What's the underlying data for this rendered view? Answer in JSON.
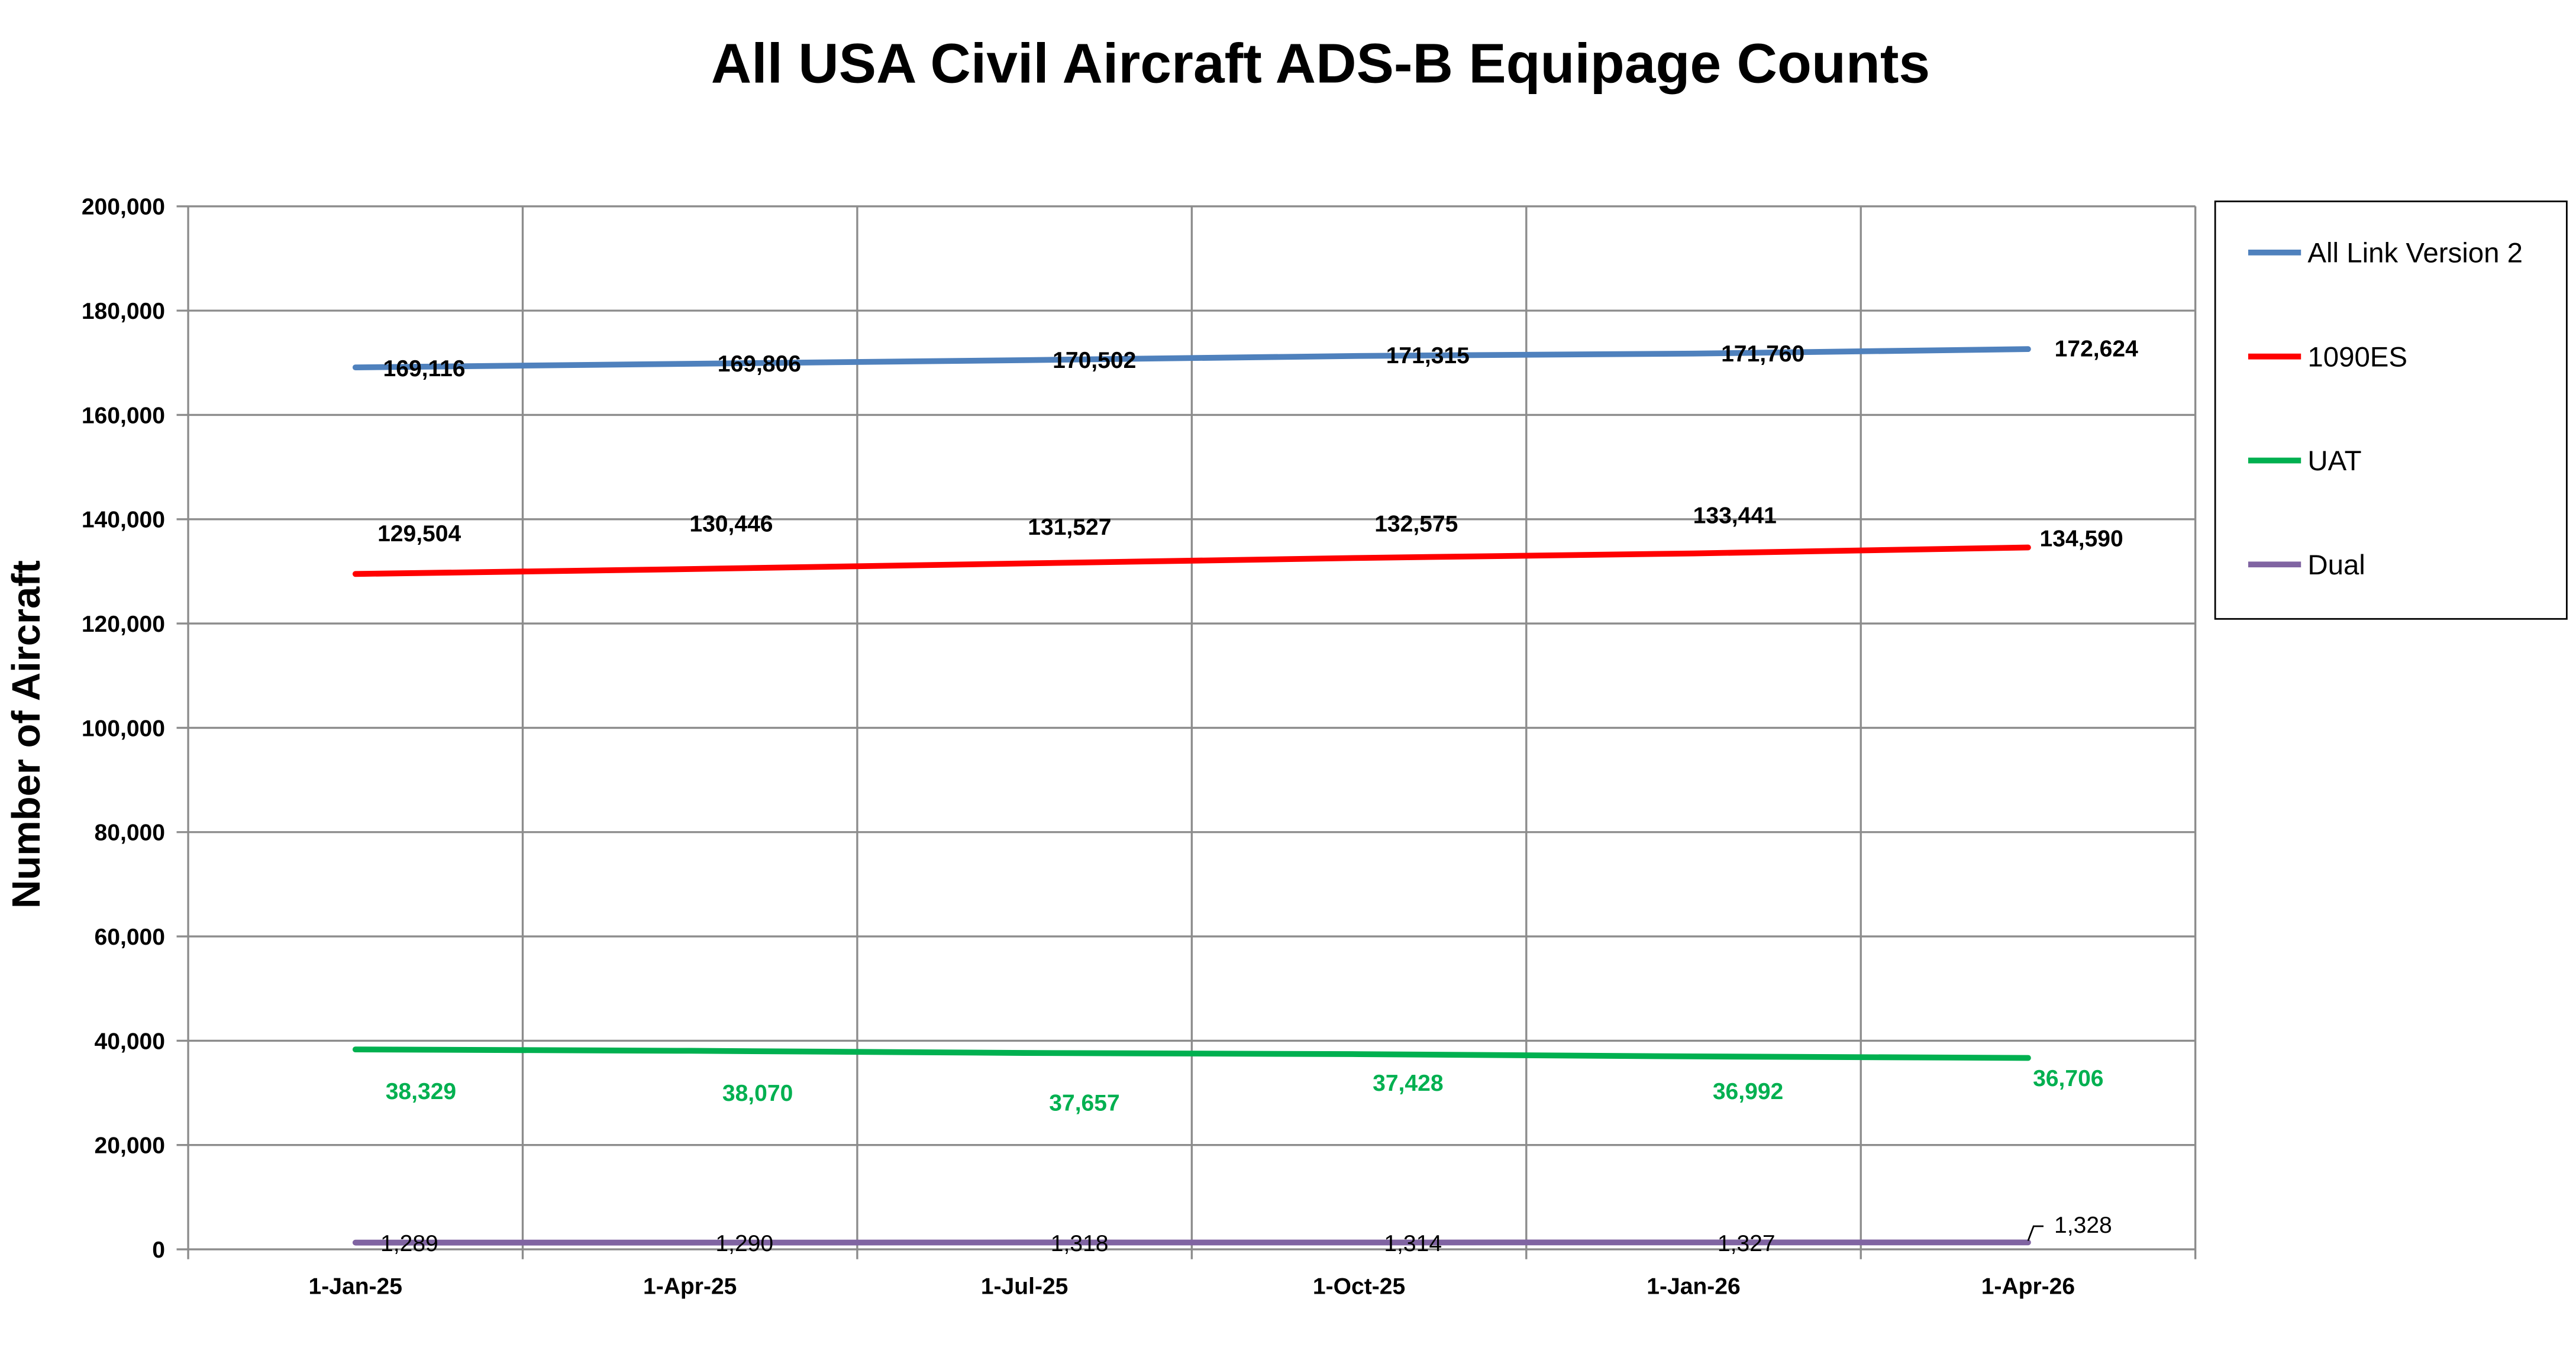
{
  "chart_data": {
    "type": "line",
    "title": "All USA Civil Aircraft ADS-B Equipage Counts",
    "xlabel": "",
    "ylabel": "Number of Aircraft",
    "categories": [
      "1-Jan-25",
      "1-Apr-25",
      "1-Jul-25",
      "1-Oct-25",
      "1-Jan-26",
      "1-Apr-26"
    ],
    "ylim": [
      0,
      200000
    ],
    "yticks": [
      0,
      20000,
      40000,
      60000,
      80000,
      100000,
      120000,
      140000,
      160000,
      180000,
      200000
    ],
    "ytick_labels": [
      "0",
      "20,000",
      "40,000",
      "60,000",
      "80,000",
      "100,000",
      "120,000",
      "140,000",
      "160,000",
      "180,000",
      "200,000"
    ],
    "grid": true,
    "legend_position": "right",
    "series": [
      {
        "name": "All Link Version 2",
        "color": "#4F81BD",
        "label_color": "#000000",
        "values": [
          169116,
          169806,
          170502,
          171315,
          171760,
          172624
        ],
        "labels": [
          "169,116",
          "169,806",
          "170,502",
          "171,315",
          "171,760",
          "172,624"
        ]
      },
      {
        "name": "1090ES",
        "color": "#FF0000",
        "label_color": "#000000",
        "values": [
          129504,
          130446,
          131527,
          132575,
          133441,
          134590
        ],
        "labels": [
          "129,504",
          "130,446",
          "131,527",
          "132,575",
          "133,441",
          "134,590"
        ]
      },
      {
        "name": "UAT",
        "color": "#00B050",
        "label_color": "#00B050",
        "values": [
          38329,
          38070,
          37657,
          37428,
          36992,
          36706
        ],
        "labels": [
          "38,329",
          "38,070",
          "37,657",
          "37,428",
          "36,992",
          "36,706"
        ]
      },
      {
        "name": "Dual",
        "color": "#8064A2",
        "label_color": "#000000",
        "values": [
          1289,
          1290,
          1318,
          1314,
          1327,
          1328
        ],
        "labels": [
          "1,289",
          "1,290",
          "1,318",
          "1,314",
          "1,327",
          "1,328"
        ]
      }
    ]
  }
}
